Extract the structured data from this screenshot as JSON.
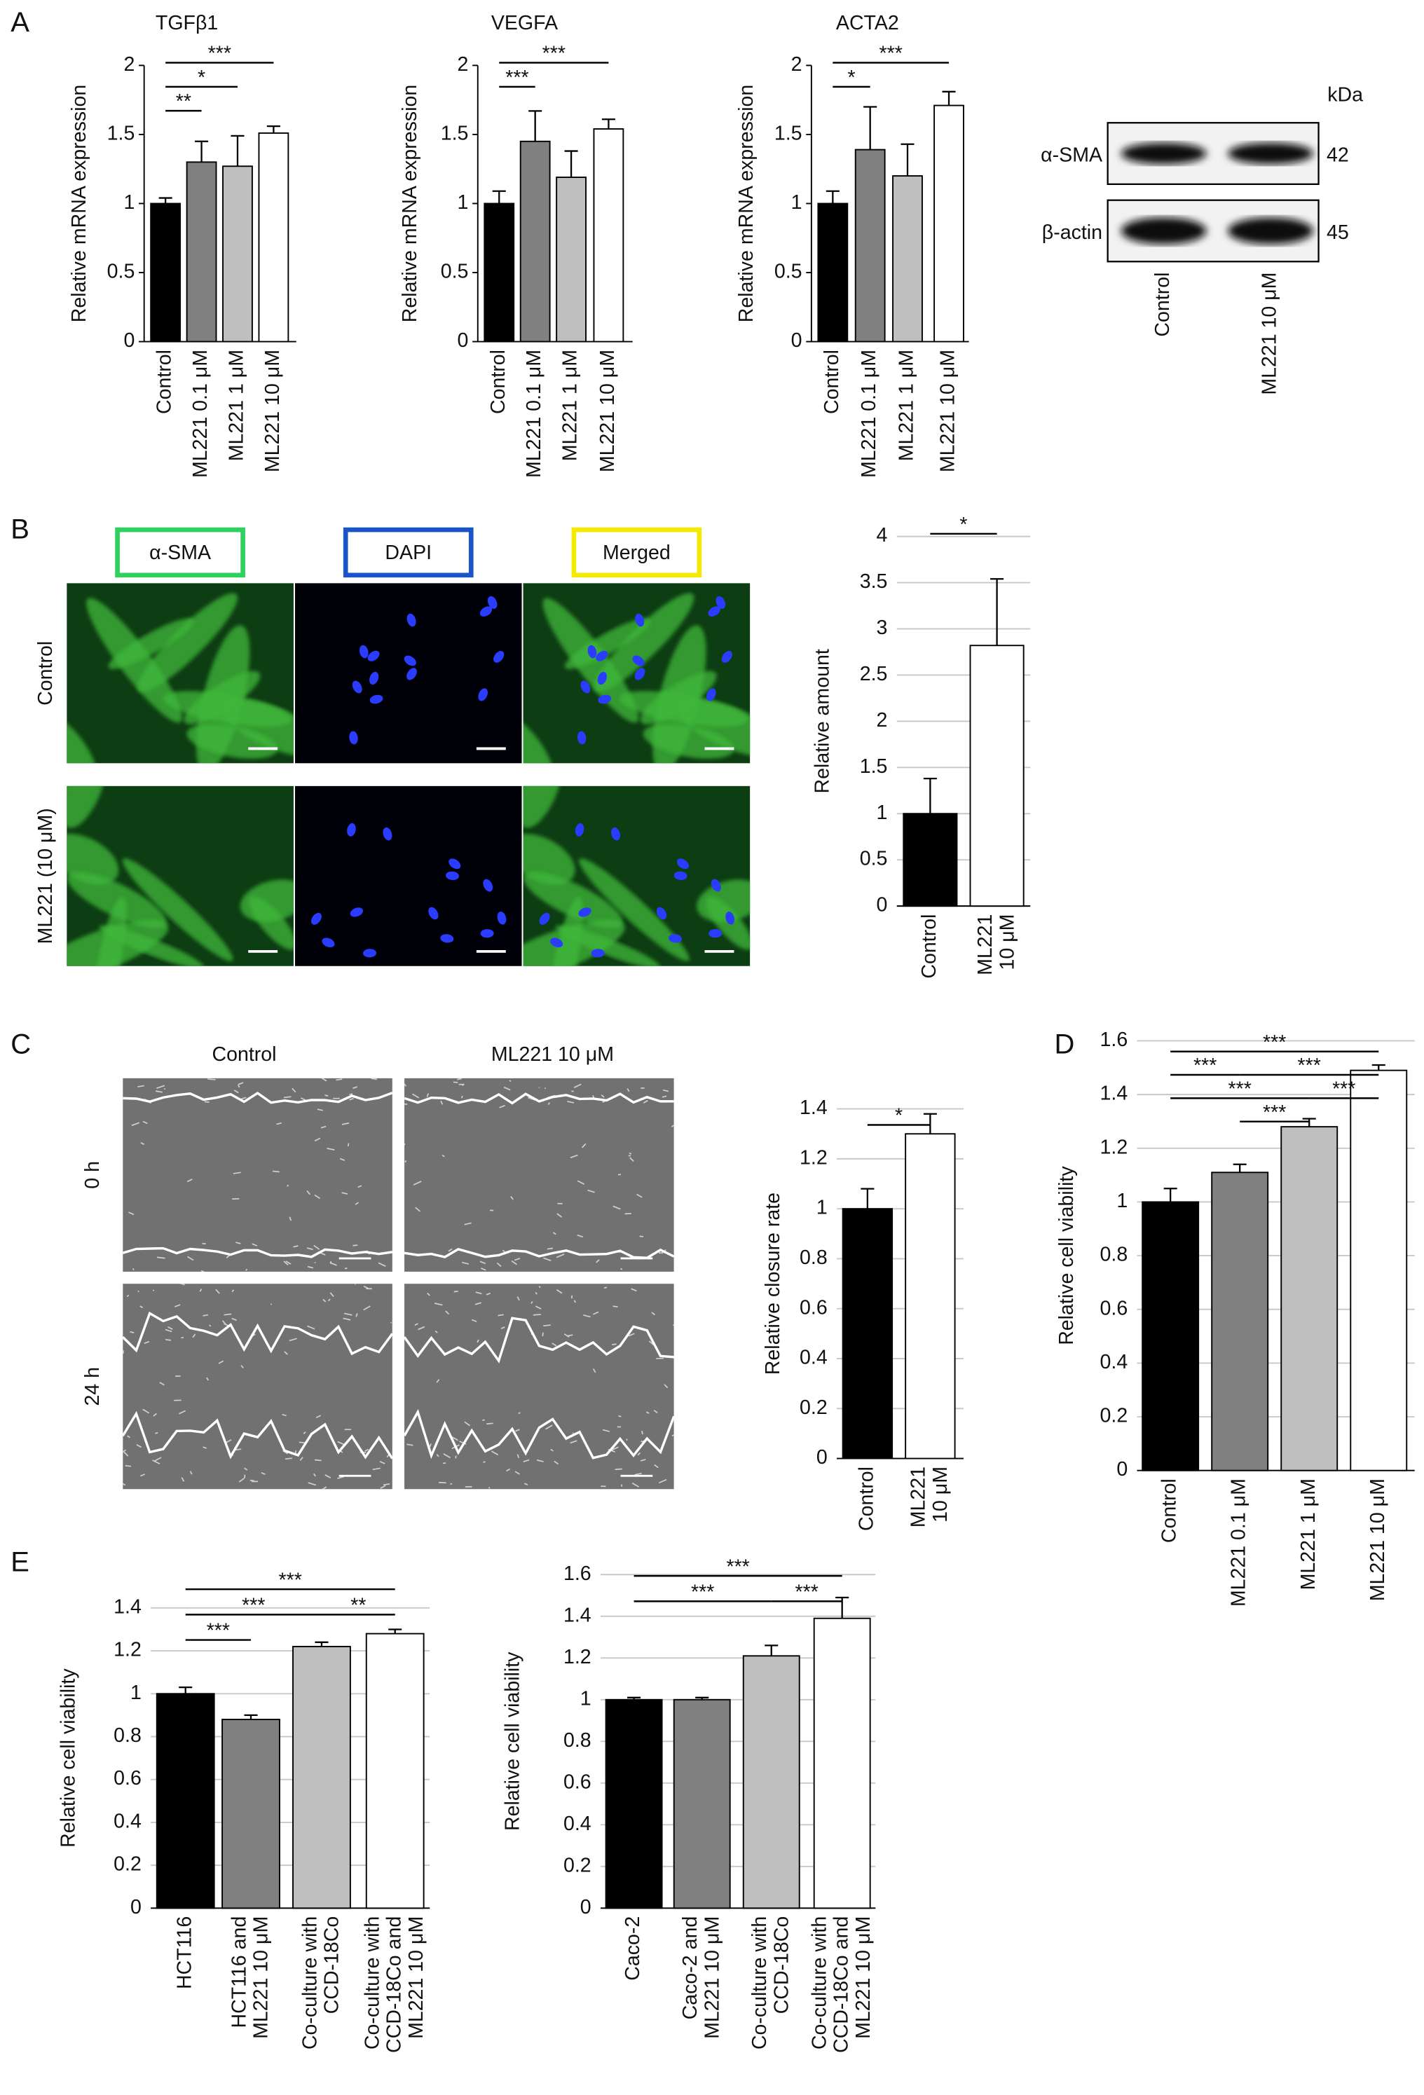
{
  "panel_labels": [
    "A",
    "B",
    "C",
    "D",
    "E"
  ],
  "chart_data": [
    {
      "type": "bar",
      "title": "TGFβ1",
      "ylabel": "Relative mRNA expression",
      "categories": [
        "Control",
        "ML221 0.1 μM",
        "ML221 1 μM",
        "ML221 10 μM"
      ],
      "values": [
        1,
        1.3,
        1.27,
        1.51
      ],
      "errors": [
        0.04,
        0.15,
        0.22,
        0.05
      ],
      "colors": [
        "#000000",
        "#808080",
        "#bfbfbf",
        "#ffffff"
      ],
      "ylim": [
        0,
        2
      ],
      "yticks": [
        0,
        0.5,
        1,
        1.5,
        2
      ],
      "grid": false,
      "significance": [
        {
          "from": 0,
          "to": 3,
          "label": "***"
        },
        {
          "from": 0,
          "to": 2,
          "label": "*"
        },
        {
          "from": 0,
          "to": 1,
          "label": "**"
        }
      ]
    },
    {
      "type": "bar",
      "title": "VEGFA",
      "ylabel": "Relative mRNA expression",
      "categories": [
        "Control",
        "ML221 0.1 μM",
        "ML221 1 μM",
        "ML221 10 μM"
      ],
      "values": [
        1,
        1.45,
        1.19,
        1.54
      ],
      "errors": [
        0.09,
        0.22,
        0.19,
        0.07
      ],
      "colors": [
        "#000000",
        "#808080",
        "#bfbfbf",
        "#ffffff"
      ],
      "ylim": [
        0,
        2
      ],
      "yticks": [
        0,
        0.5,
        1,
        1.5,
        2
      ],
      "grid": false,
      "significance": [
        {
          "from": 0,
          "to": 3,
          "label": "***"
        },
        {
          "from": 0,
          "to": 1,
          "label": "***"
        }
      ]
    },
    {
      "type": "bar",
      "title": "ACTA2",
      "ylabel": "Relative mRNA expression",
      "categories": [
        "Control",
        "ML221 0.1 μM",
        "ML221 1 μM",
        "ML221 10 μM"
      ],
      "values": [
        1,
        1.39,
        1.2,
        1.71
      ],
      "errors": [
        0.09,
        0.31,
        0.23,
        0.1
      ],
      "colors": [
        "#000000",
        "#808080",
        "#bfbfbf",
        "#ffffff"
      ],
      "ylim": [
        0,
        2
      ],
      "yticks": [
        0,
        0.5,
        1,
        1.5,
        2
      ],
      "grid": false,
      "significance": [
        {
          "from": 0,
          "to": 3,
          "label": "***"
        },
        {
          "from": 0,
          "to": 1,
          "label": "*"
        }
      ]
    },
    {
      "type": "bar",
      "ylabel": "Relative amount",
      "categories": [
        "Control",
        "ML221\n10 μM"
      ],
      "values": [
        1,
        2.82
      ],
      "errors": [
        0.38,
        0.72
      ],
      "colors": [
        "#000000",
        "#ffffff"
      ],
      "ylim": [
        0,
        4
      ],
      "yticks": [
        0,
        0.5,
        1,
        1.5,
        2,
        2.5,
        3,
        3.5,
        4
      ],
      "grid": true,
      "significance": [
        {
          "from": 0,
          "to": 1,
          "label": "*"
        }
      ]
    },
    {
      "type": "bar",
      "ylabel": "Relative closure rate",
      "categories": [
        "Control",
        "ML221\n10 μM"
      ],
      "values": [
        1,
        1.3
      ],
      "errors": [
        0.08,
        0.08
      ],
      "colors": [
        "#000000",
        "#ffffff"
      ],
      "ylim": [
        0,
        1.4
      ],
      "yticks": [
        0,
        0.2,
        0.4,
        0.6,
        0.8,
        1,
        1.2,
        1.4
      ],
      "grid": true,
      "significance": [
        {
          "from": 0,
          "to": 1,
          "label": "*"
        }
      ]
    },
    {
      "type": "bar",
      "ylabel": "Relative cell viability",
      "categories": [
        "Control",
        "ML221 0.1 μM",
        "ML221 1 μM",
        "ML221 10 μM"
      ],
      "values": [
        1,
        1.11,
        1.28,
        1.49
      ],
      "errors": [
        0.05,
        0.03,
        0.03,
        0.02
      ],
      "colors": [
        "#000000",
        "#808080",
        "#bfbfbf",
        "#ffffff"
      ],
      "ylim": [
        0,
        1.6
      ],
      "yticks": [
        0,
        0.2,
        0.4,
        0.6,
        0.8,
        1,
        1.2,
        1.4,
        1.6
      ],
      "grid": true,
      "significance": [
        {
          "from": 0,
          "to": 3,
          "label": "***"
        },
        {
          "from": 1,
          "to": 3,
          "label": "***"
        },
        {
          "from": 2,
          "to": 3,
          "label": "***"
        },
        {
          "from": 0,
          "to": 2,
          "label": "***"
        },
        {
          "from": 1,
          "to": 2,
          "label": "***"
        },
        {
          "from": 0,
          "to": 1,
          "label": "***"
        }
      ]
    },
    {
      "type": "bar",
      "ylabel": "Relative cell viability",
      "categories": [
        "HCT116",
        "HCT116 and\nML221 10 μM",
        "Co-culture with\nCCD-18Co",
        "Co-culture with\nCCD-18Co and\nML221 10 μM"
      ],
      "values": [
        1,
        0.88,
        1.22,
        1.28
      ],
      "errors": [
        0.03,
        0.02,
        0.02,
        0.02
      ],
      "colors": [
        "#000000",
        "#808080",
        "#bfbfbf",
        "#ffffff"
      ],
      "ylim": [
        0,
        1.4
      ],
      "yticks": [
        0,
        0.2,
        0.4,
        0.6,
        0.8,
        1,
        1.2,
        1.4
      ],
      "grid": true,
      "significance": [
        {
          "from": 0,
          "to": 3,
          "label": "***"
        },
        {
          "from": 0,
          "to": 2,
          "label": "***"
        },
        {
          "from": 2,
          "to": 3,
          "label": "**"
        },
        {
          "from": 0,
          "to": 1,
          "label": "***"
        }
      ]
    },
    {
      "type": "bar",
      "ylabel": "Relative cell viability",
      "categories": [
        "Caco-2",
        "Caco-2 and\nML221 10 μM",
        "Co-culture with\nCCD-18Co",
        "Co-culture with\nCCD-18Co and\nML221 10 μM"
      ],
      "values": [
        1,
        1,
        1.21,
        1.39
      ],
      "errors": [
        0.01,
        0.01,
        0.05,
        0.1
      ],
      "colors": [
        "#000000",
        "#808080",
        "#bfbfbf",
        "#ffffff"
      ],
      "ylim": [
        0,
        1.6
      ],
      "yticks": [
        0,
        0.2,
        0.4,
        0.6,
        0.8,
        1,
        1.2,
        1.4,
        1.6
      ],
      "grid": true,
      "significance": [
        {
          "from": 0,
          "to": 3,
          "label": "***"
        },
        {
          "from": 0,
          "to": 2,
          "label": "***"
        },
        {
          "from": 2,
          "to": 3,
          "label": "***"
        }
      ]
    }
  ],
  "blot": {
    "unit": "kDa",
    "bands": [
      {
        "label": "α-SMA",
        "size": 42
      },
      {
        "label": "β-actin",
        "size": 45
      }
    ],
    "lanes": [
      "Control",
      "ML221 10 μM"
    ]
  },
  "microscopy": {
    "stains": [
      "α-SMA",
      "DAPI",
      "Merged"
    ],
    "conditions": [
      "Control",
      "ML221 (10 μM)"
    ]
  },
  "wound": {
    "conditions": [
      "Control",
      "ML221 10 μM"
    ],
    "times": [
      "0 h",
      "24 h"
    ]
  }
}
